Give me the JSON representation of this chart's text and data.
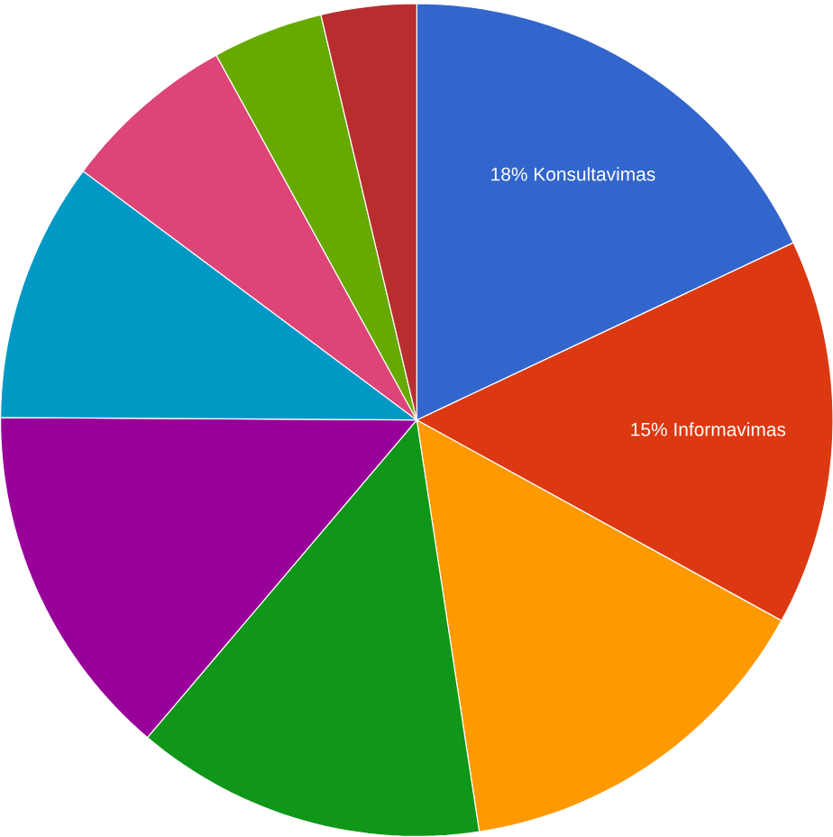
{
  "chart_data": {
    "type": "pie",
    "categories": [
      "Konsultavimas",
      "Informavimas",
      null,
      null,
      null,
      null,
      null,
      null,
      null
    ],
    "values": [
      18,
      15,
      14.6,
      13.6,
      13.9,
      10.1,
      6.8,
      4.3,
      3.7
    ],
    "value_labels": [
      "18%",
      "15%",
      null,
      null,
      null,
      null,
      null,
      null,
      null
    ],
    "colors": [
      "#3366cc",
      "#dc3912",
      "#ff9900",
      "#109618",
      "#990099",
      "#0099c6",
      "#dd4477",
      "#66aa00",
      "#b82e2e"
    ]
  }
}
